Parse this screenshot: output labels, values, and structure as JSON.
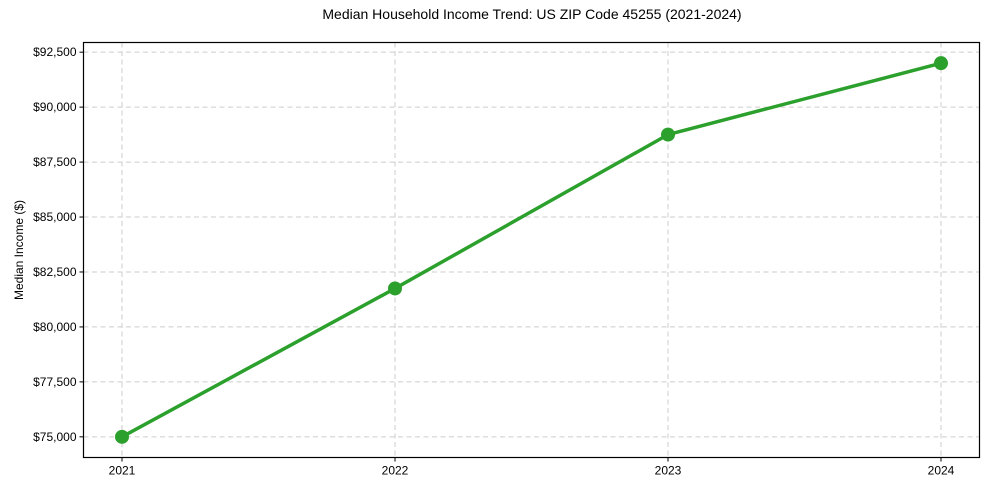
{
  "chart_data": {
    "type": "line",
    "title": "Median Household Income Trend: US ZIP Code 45255 (2021-2024)",
    "xlabel": "",
    "ylabel": "Median Income ($)",
    "x": [
      2021,
      2022,
      2023,
      2024
    ],
    "x_tick_labels": [
      "2021",
      "2022",
      "2023",
      "2024"
    ],
    "values": [
      75000,
      81750,
      88750,
      92000
    ],
    "y_tick_values": [
      75000,
      77500,
      80000,
      82500,
      85000,
      87500,
      90000,
      92500
    ],
    "y_tick_labels": [
      "$75,000",
      "$77,500",
      "$80,000",
      "$82,500",
      "$85,000",
      "$87,500",
      "$90,000",
      "$92,500"
    ],
    "xlim": [
      2020.859,
      2024.141
    ],
    "ylim": [
      74060,
      92940
    ],
    "grid": "dashed",
    "legend_position": "none",
    "colors": {
      "line": "#2ca02c",
      "marker": "#2ca02c",
      "grid": "#cccccc",
      "axis": "#000000",
      "text": "#000000",
      "background": "#ffffff"
    }
  }
}
